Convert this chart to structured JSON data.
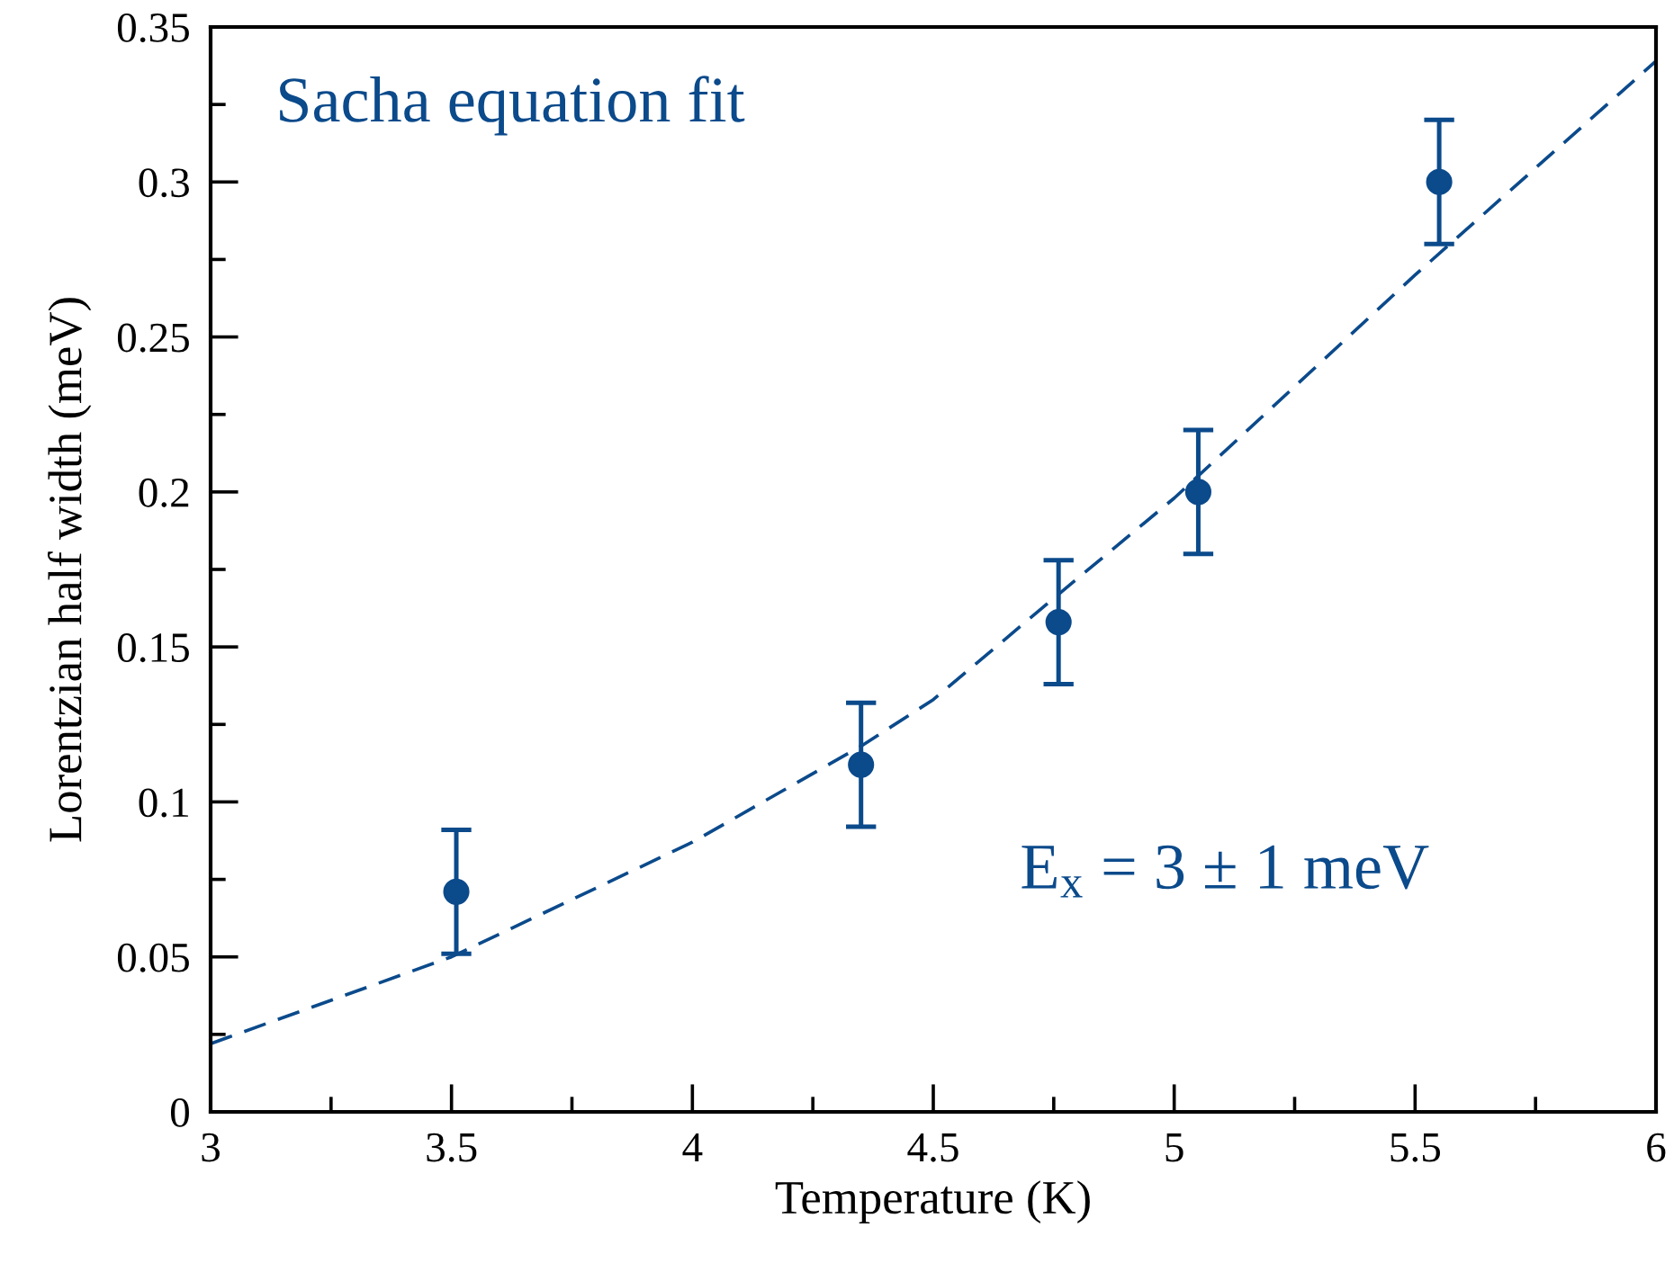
{
  "chart_data": {
    "type": "scatter",
    "xlabel": "Temperature (K)",
    "ylabel": "Lorentzian half width (meV)",
    "annotations": [
      "Sacha equation fit",
      "E$_{x}$ = 3 ± 1 meV"
    ],
    "series": [
      {
        "color": "#0b4a8b",
        "marker": "circle",
        "x": [
          3.51,
          4.35,
          4.76,
          5.05,
          5.55
        ],
        "values": [
          0.071,
          0.112,
          0.158,
          0.2,
          0.3
        ],
        "errors": [
          0.02,
          0.02,
          0.02,
          0.02,
          0.02
        ]
      },
      {
        "type": "line",
        "color": "#0b4a8b",
        "marker": "none",
        "line_style": "dashed",
        "x": [
          3,
          3.5,
          4,
          4.35,
          4.5,
          4.76,
          5,
          5.5,
          6
        ],
        "values": [
          0.022,
          0.05,
          0.087,
          0.118,
          0.133,
          0.167,
          0.198,
          0.27,
          0.339
        ]
      }
    ],
    "xlim": [
      3,
      6
    ],
    "ylim": [
      0,
      0.35
    ],
    "xticks": [
      3,
      {
        "value": 3.25,
        "label": null
      },
      3.5,
      {
        "value": 3.75,
        "label": null
      },
      4,
      {
        "value": 4.25,
        "label": null
      },
      4.5,
      {
        "value": 4.75,
        "label": null
      },
      5,
      {
        "value": 5.25,
        "label": null
      },
      5.5,
      {
        "value": 5.75,
        "label": null
      },
      6
    ],
    "yticks": [
      0,
      {
        "value": 0.025,
        "label": null
      },
      0.05,
      {
        "value": 0.075,
        "label": null
      },
      0.1,
      {
        "value": 0.125,
        "label": null
      },
      0.15,
      {
        "value": 0.175,
        "label": null
      },
      0.2,
      {
        "value": 0.225,
        "label": null
      },
      0.25,
      {
        "value": 0.275,
        "label": null
      },
      0.3,
      {
        "value": 0.325,
        "label": null
      },
      0.35
    ],
    "grid": false,
    "legend": false
  }
}
